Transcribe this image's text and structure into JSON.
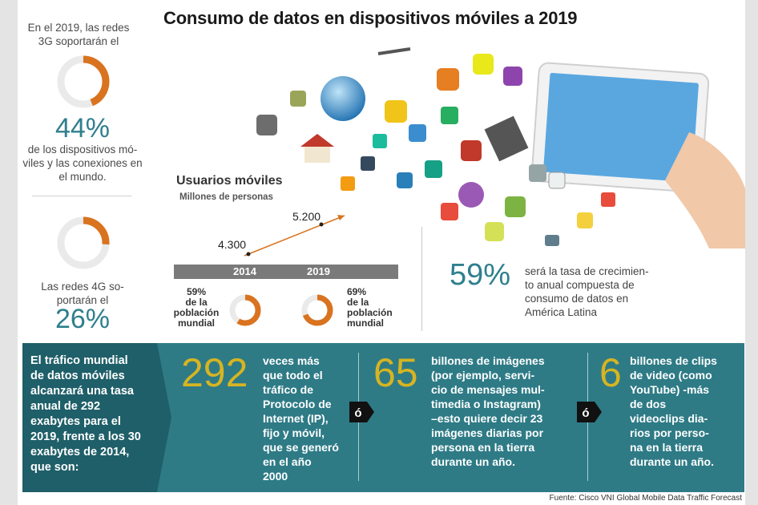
{
  "title": "Consumo de datos en dispositivos móviles a 2019",
  "left_stats": {
    "stat1_pre_line1": "En el 2019, las redes",
    "stat1_pre_line2": "3G soportarán el",
    "stat1_pct": "44%",
    "stat1_post_line1": "de los dispositivos mó-",
    "stat1_post_line2": "viles y las conexiones en",
    "stat1_post_line3": "el mundo.",
    "stat1_fraction": 0.44,
    "stat2_pre_line1": "Las redes 4G so-",
    "stat2_pre_line2": "portarán el",
    "stat2_pct": "26%",
    "stat2_fraction": 0.26
  },
  "mobile_users": {
    "title": "Usuarios móviles",
    "subtitle": "Millones de personas",
    "value_2014": "4.300",
    "value_2019": "5.200",
    "year_2014": "2014",
    "year_2019": "2019",
    "pop_2014_pct": "59%",
    "pop_2014_line1": "de la",
    "pop_2014_line2": "población",
    "pop_2014_line3": "mundial",
    "pop_2014_fraction": 0.59,
    "pop_2019_pct": "69%",
    "pop_2019_line1": "de la",
    "pop_2019_line2": "población",
    "pop_2019_line3": "mundial",
    "pop_2019_fraction": 0.69
  },
  "growth": {
    "pct": "59%",
    "line1": "será la tasa de crecimien-",
    "line2": "to anual compuesta de",
    "line3": "consumo de datos en",
    "line4": "América Latina"
  },
  "band": {
    "intro_lines": [
      "El tráfico mundial",
      "de datos móviles",
      "alcanzará una tasa",
      "anual de 292",
      "exabytes para el",
      "2019, frente a los 30",
      "exabytes de 2014,",
      "que son:"
    ],
    "num1": "292",
    "text1_lines": [
      "veces más",
      "que todo el",
      "tráfico de",
      "Protocolo de",
      "Internet (IP),",
      "fijo y móvil,",
      "que se generó",
      "en el año",
      "2000"
    ],
    "or1": "ó",
    "num2": "65",
    "text2_lines": [
      "billones de imágenes",
      "(por ejemplo, servi-",
      "cio de mensajes mul-",
      "timedia o Instagram)",
      "–esto quiere decir 23",
      "imágenes diarias por",
      "persona en la tierra",
      "durante un año."
    ],
    "or2": "ó",
    "num3": "6",
    "text3_lines": [
      "billones de clips",
      "de video (como",
      "YouTube) -más",
      "de dos",
      "videoclips dia-",
      "rios por perso-",
      "na en la tierra",
      "durante un año."
    ]
  },
  "source": "Fuente: Cisco VNI Global Mobile Data Traffic Forecast",
  "colors": {
    "teal": "#2e7b86",
    "orange": "#d9731f",
    "gold": "#d6b422",
    "gray_bar": "#7a7a7a"
  }
}
